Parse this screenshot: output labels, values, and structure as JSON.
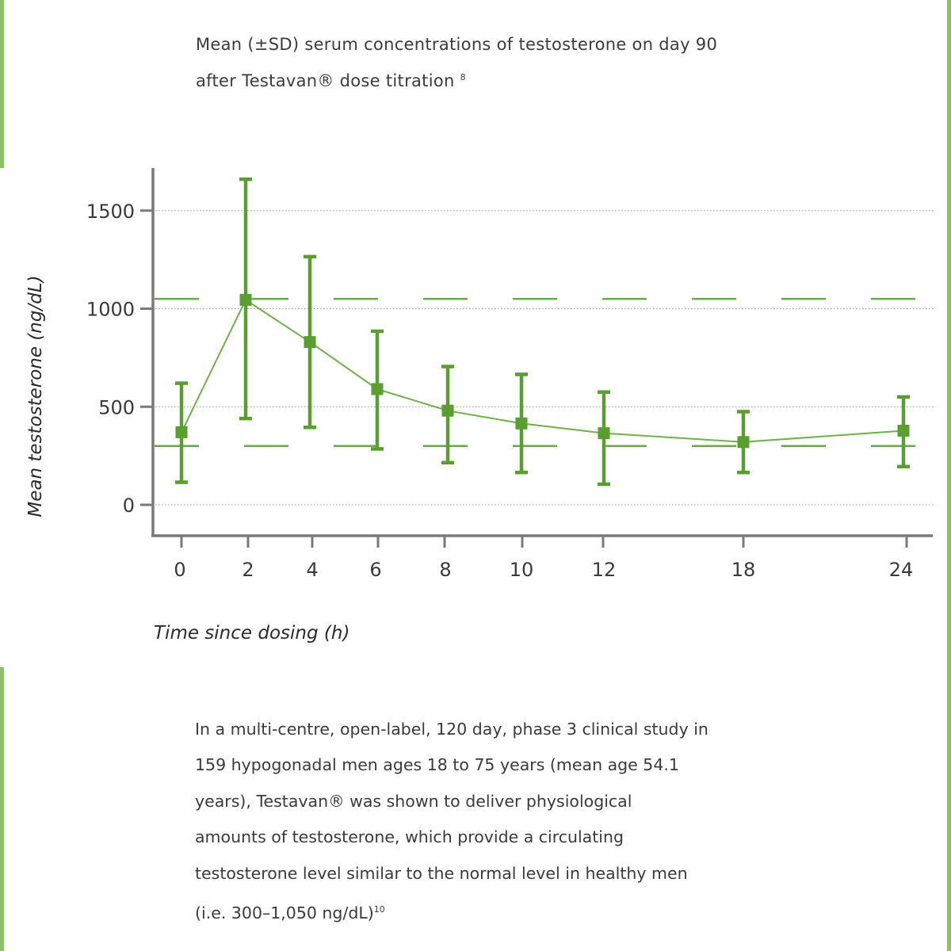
{
  "title": {
    "line1": "Mean (±SD) serum concentrations of testosterone on day 90",
    "line2": "after Testavan® dose titration",
    "ref": "8"
  },
  "colors": {
    "accent": "#6aa84f",
    "series": "#5a9e32",
    "axis": "#7a7a7a",
    "frame_edge": "#8cc16a"
  },
  "chart_data": {
    "type": "line",
    "xlabel": "Time since dosing (h)",
    "ylabel": "Mean testosterone (ng/dL)",
    "x_ticks": [
      0,
      2,
      4,
      6,
      8,
      10,
      12,
      18,
      24
    ],
    "y_ticks": [
      0,
      500,
      1000,
      1500
    ],
    "ylim": [
      -150,
      1700
    ],
    "x_scale": "non-uniform (categorical spacing; 18 and 24 spaced wider)",
    "grid": "dotted horizontal at y ticks",
    "reference_lines": [
      {
        "y": 1050,
        "style": "dashed"
      },
      {
        "y": 300,
        "style": "dashed"
      }
    ],
    "series": [
      {
        "x": [
          0,
          2,
          4,
          6,
          8,
          10,
          12,
          18,
          24
        ],
        "y": [
          370,
          1045,
          830,
          590,
          480,
          415,
          365,
          320,
          378
        ],
        "err_low": [
          115,
          440,
          395,
          285,
          215,
          165,
          105,
          165,
          195
        ],
        "err_high": [
          620,
          1660,
          1265,
          885,
          705,
          665,
          575,
          475,
          550
        ]
      }
    ]
  },
  "body_text": [
    "In a multi-centre, open-label, 120 day, phase 3 clinical study in",
    "159 hypogonadal men ages 18 to 75 years (mean age 54.1",
    "years), Testavan® was shown to deliver physiological",
    "amounts of testosterone, which provide a circulating",
    "testosterone level similar to the normal level in healthy men"
  ],
  "body_last_line": "(i.e. 300–1,050 ng/dL)",
  "body_ref": "10"
}
